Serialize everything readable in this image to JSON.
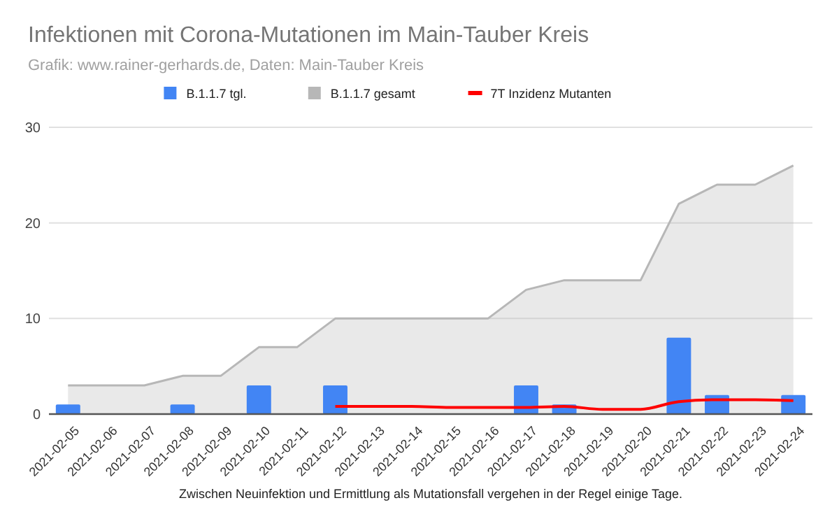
{
  "chart_data": {
    "type": "bar",
    "title": "Infektionen mit Corona-Mutationen im Main-Tauber Kreis",
    "subtitle": "Grafik: www.rainer-gerhards.de, Daten: Main-Tauber Kreis",
    "xlabel": "Zwischen Neuinfektion und Ermittlung als Mutationsfall vergehen in der Regel einige Tage.",
    "categories": [
      "2021-02-05",
      "2021-02-06",
      "2021-02-07",
      "2021-02-08",
      "2021-02-09",
      "2021-02-10",
      "2021-02-11",
      "2021-02-12",
      "2021-02-13",
      "2021-02-14",
      "2021-02-15",
      "2021-02-16",
      "2021-02-17",
      "2021-02-18",
      "2021-02-19",
      "2021-02-20",
      "2021-02-21",
      "2021-02-22",
      "2021-02-23",
      "2021-02-24"
    ],
    "series": [
      {
        "name": "B.1.1.7 tgl.",
        "color": "#4285f4",
        "values": [
          1,
          0,
          0,
          1,
          0,
          3,
          0,
          3,
          0,
          0,
          0,
          0,
          3,
          1,
          0,
          0,
          8,
          2,
          0,
          2
        ]
      },
      {
        "name": "B.1.1.7 gesamt",
        "type": "area",
        "color": "#b7b7b7",
        "values": [
          3,
          3,
          3,
          4,
          4,
          7,
          7,
          10,
          10,
          10,
          10,
          10,
          13,
          14,
          14,
          14,
          22,
          24,
          24,
          26
        ]
      },
      {
        "name": "7T Inzidenz Mutanten",
        "type": "line",
        "color": "#ff0000",
        "values": [
          null,
          null,
          null,
          null,
          null,
          null,
          null,
          0.8,
          0.8,
          0.8,
          0.7,
          0.7,
          0.7,
          0.8,
          0.5,
          0.5,
          1.3,
          1.5,
          1.5,
          1.4
        ]
      }
    ],
    "ylim": [
      0,
      30
    ],
    "yticks": [
      0,
      10,
      20,
      30
    ],
    "grid": "y",
    "legend": "top"
  }
}
